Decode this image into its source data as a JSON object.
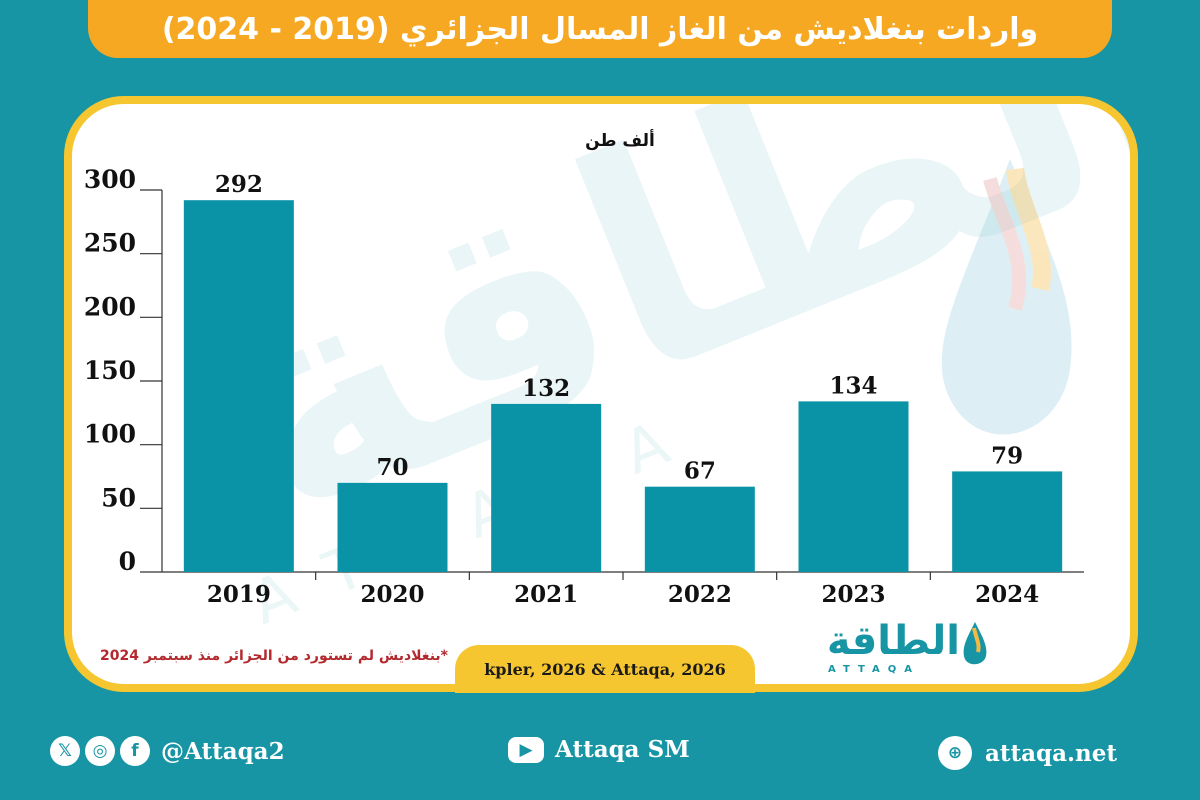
{
  "header": {
    "title": "واردات بنغلاديش من الغاز المسال الجزائري (2019 - 2024)"
  },
  "chart_data": {
    "type": "bar",
    "title": "",
    "unit_label": "ألف طن",
    "categories": [
      "2019",
      "2020",
      "2021",
      "2022",
      "2023",
      "2024"
    ],
    "values": [
      292,
      70,
      132,
      67,
      134,
      79
    ],
    "data_labels": [
      "292",
      "70",
      "132",
      "67",
      "134",
      "79"
    ],
    "y_ticks": [
      "0",
      "50",
      "100",
      "150",
      "200",
      "250",
      "300"
    ],
    "ylim": [
      0,
      300
    ],
    "xlabel": "",
    "ylabel": "",
    "grid": false,
    "bar_color": "#0a93a7"
  },
  "note": "*بنغلاديش لم تستورد من الجزائر منذ سبتمبر 2024",
  "source": "kpler, 2026 & Attaqa, 2026",
  "logo": {
    "arabic": "الطاقة",
    "english": "ATTAQA"
  },
  "watermark": {
    "arabic": "الطاقة",
    "english": "ATTAQA"
  },
  "footer": {
    "social_handle": "@Attaqa2",
    "youtube": "Attaqa SM",
    "website": "attaqa.net"
  },
  "colors": {
    "background": "#1795a4",
    "title_bar": "#f7a823",
    "card_border": "#f5c62f",
    "note": "#b3282d"
  }
}
